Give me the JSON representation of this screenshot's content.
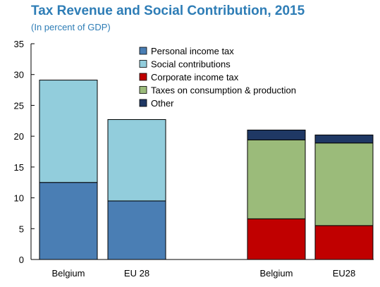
{
  "title": "Tax Revenue and Social Contribution, 2015",
  "subtitle": "(In percent of GDP)",
  "chart_data": {
    "type": "bar",
    "stacked": true,
    "ylim": [
      0,
      35
    ],
    "yticks": [
      0,
      5,
      10,
      15,
      20,
      25,
      30,
      35
    ],
    "grid": false,
    "legend_position": "top-center",
    "categories": [
      "Belgium",
      "EU 28",
      "Belgium",
      "EU28"
    ],
    "series": [
      {
        "name": "Personal income tax",
        "color": "#4A7EB4",
        "values": [
          12.5,
          9.5,
          0,
          0
        ]
      },
      {
        "name": "Social contributions",
        "color": "#92CDDC",
        "values": [
          16.6,
          13.2,
          0,
          0
        ]
      },
      {
        "name": "Corporate income tax",
        "color": "#C00000",
        "values": [
          0,
          0,
          6.6,
          5.5
        ]
      },
      {
        "name": "Taxes on consumption & production",
        "color": "#9BBB7A",
        "values": [
          0,
          0,
          12.8,
          13.4
        ]
      },
      {
        "name": "Other",
        "color": "#1F3864",
        "values": [
          0,
          0,
          1.6,
          1.3
        ]
      }
    ]
  }
}
